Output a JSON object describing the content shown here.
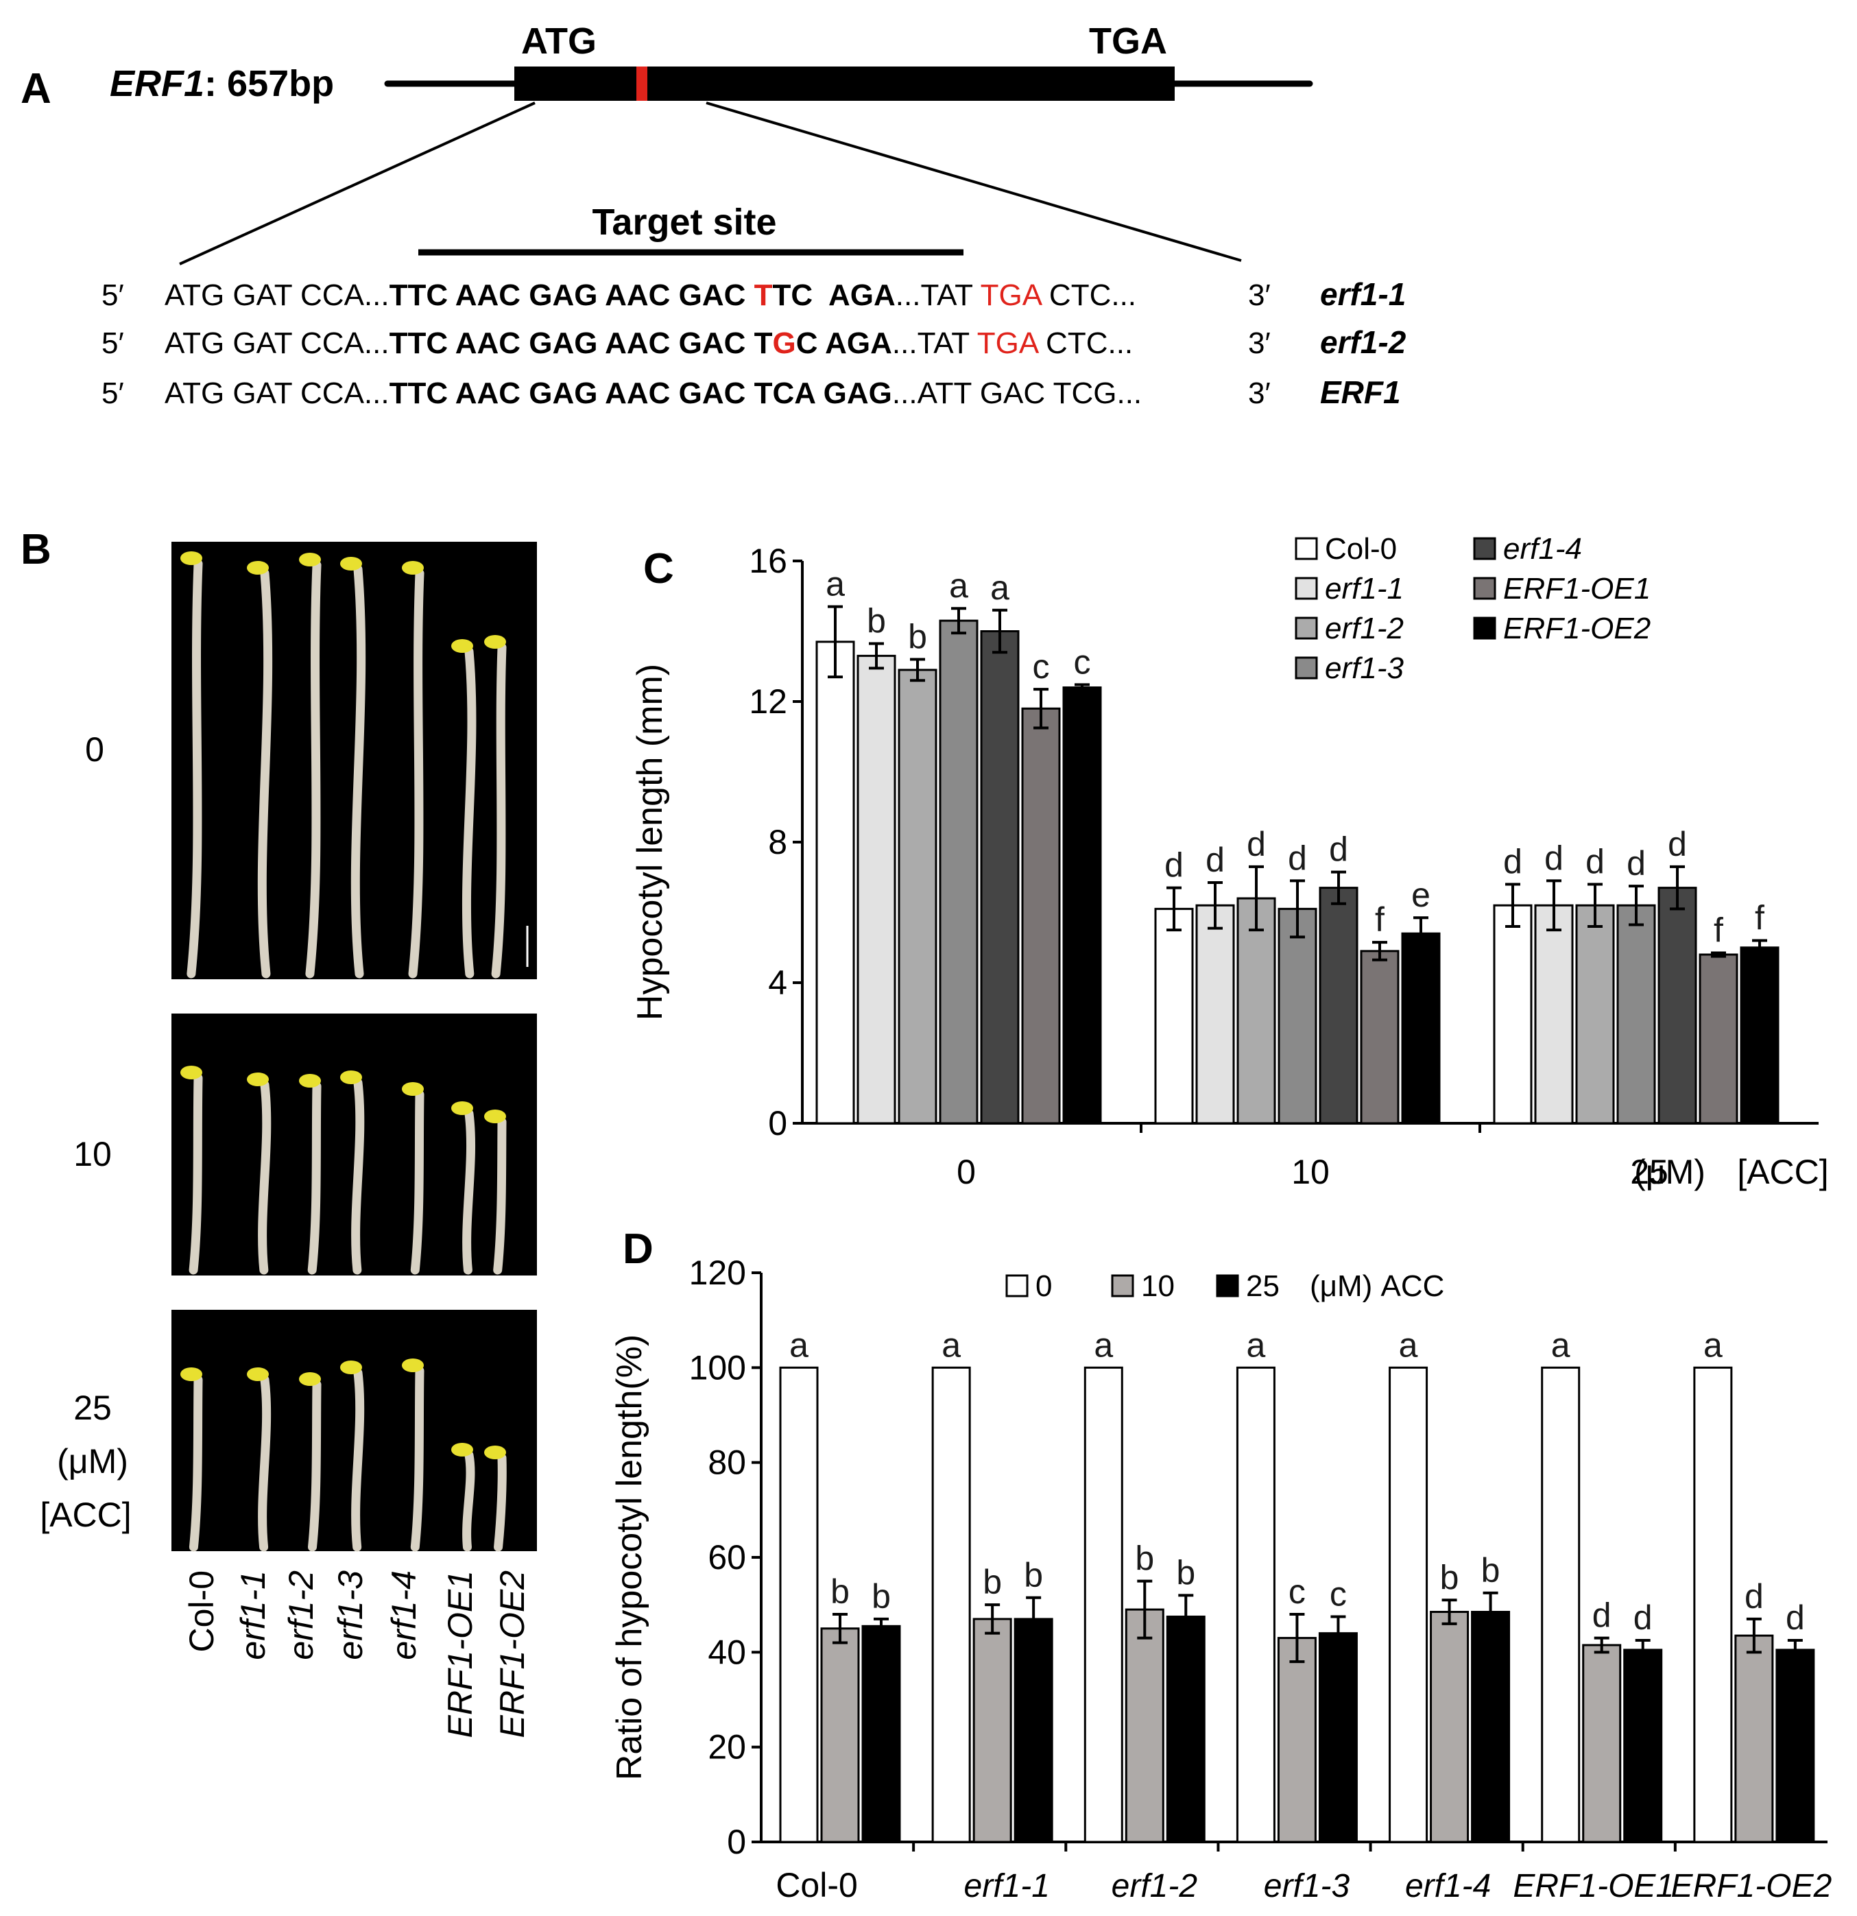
{
  "figure": {
    "panels": [
      "A",
      "B",
      "C",
      "D"
    ],
    "panel_a": {
      "gene_label": "ERF1",
      "gene_size": ": 657bp",
      "start_codon": "ATG",
      "stop_codon": "TGA",
      "target_label": "Target site",
      "sequences": [
        {
          "name": "erf1-1",
          "prime5": "5′",
          "prime3": "3′",
          "segments": [
            {
              "t": "ATG GAT CCA...",
              "bold": false,
              "red": false
            },
            {
              "t": "TTC AAC GAG AAC GAC ",
              "bold": true,
              "red": false
            },
            {
              "t": "T",
              "bold": true,
              "red": true
            },
            {
              "t": "TC  AGA",
              "bold": true,
              "red": false
            },
            {
              "t": "...TAT ",
              "bold": false,
              "red": false
            },
            {
              "t": "TGA",
              "bold": false,
              "red": true
            },
            {
              "t": " CTC...",
              "bold": false,
              "red": false
            }
          ]
        },
        {
          "name": "erf1-2",
          "prime5": "5′",
          "prime3": "3′",
          "segments": [
            {
              "t": "ATG GAT CCA...",
              "bold": false,
              "red": false
            },
            {
              "t": "TTC AAC GAG AAC GAC T",
              "bold": true,
              "red": false
            },
            {
              "t": "G",
              "bold": true,
              "red": true
            },
            {
              "t": "C AGA",
              "bold": true,
              "red": false
            },
            {
              "t": "...TAT ",
              "bold": false,
              "red": false
            },
            {
              "t": "TGA",
              "bold": false,
              "red": true
            },
            {
              "t": " CTC...",
              "bold": false,
              "red": false
            }
          ]
        },
        {
          "name": "ERF1",
          "prime5": "5′",
          "prime3": "3′",
          "segments": [
            {
              "t": "ATG GAT CCA...",
              "bold": false,
              "red": false
            },
            {
              "t": "TTC AAC GAG AAC GAC TCA GAG",
              "bold": true,
              "red": false
            },
            {
              "t": "...ATT GAC TCG...",
              "bold": false,
              "red": false
            }
          ]
        }
      ]
    },
    "panel_b": {
      "row_labels": [
        "0",
        "10",
        "25"
      ],
      "unit_labels": [
        "(μM)",
        "[ACC]"
      ],
      "genotypes": [
        "Col-0",
        "erf1-1",
        "erf1-2",
        "erf1-3",
        "erf1-4",
        "ERF1-OE1",
        "ERF1-OE2"
      ],
      "photo_bg": "#000000",
      "seedling_colors": {
        "stem": "#d8d2c4",
        "cotyledon": "#e8e030"
      }
    }
  },
  "chart_data": [
    {
      "panel": "C",
      "type": "bar",
      "title": "",
      "xlabel": "",
      "x_suffix": [
        "(μM)",
        "[ACC]"
      ],
      "ylabel": "Hypocotyl length (mm)",
      "ylim": [
        0,
        16
      ],
      "yticks": [
        0,
        4,
        8,
        12,
        16
      ],
      "categories": [
        "0",
        "10",
        "25"
      ],
      "series": [
        {
          "name": "Col-0",
          "color": "#ffffff",
          "values": [
            13.7,
            6.1,
            6.2
          ],
          "errors": [
            1.0,
            0.6,
            0.6
          ],
          "letters": [
            "a",
            "d",
            "d"
          ]
        },
        {
          "name": "erf1-1",
          "color": "#e2e2e2",
          "values": [
            13.3,
            6.2,
            6.2
          ],
          "errors": [
            0.35,
            0.65,
            0.7
          ],
          "letters": [
            "b",
            "d",
            "d"
          ]
        },
        {
          "name": "erf1-2",
          "color": "#ababab",
          "values": [
            12.9,
            6.4,
            6.2
          ],
          "errors": [
            0.3,
            0.9,
            0.6
          ],
          "letters": [
            "b",
            "d",
            "d"
          ]
        },
        {
          "name": "erf1-3",
          "color": "#8a8a8a",
          "values": [
            14.3,
            6.1,
            6.2
          ],
          "errors": [
            0.35,
            0.8,
            0.55
          ],
          "letters": [
            "a",
            "d",
            "d"
          ]
        },
        {
          "name": "erf1-4",
          "color": "#454545",
          "values": [
            14.0,
            6.7,
            6.7
          ],
          "errors": [
            0.6,
            0.45,
            0.6
          ],
          "letters": [
            "a",
            "d",
            "d"
          ]
        },
        {
          "name": "ERF1-OE1",
          "color": "#7a7474",
          "values": [
            11.8,
            4.9,
            4.8
          ],
          "errors": [
            0.55,
            0.25,
            0.05
          ],
          "letters": [
            "c",
            "f",
            "f"
          ]
        },
        {
          "name": "ERF1-OE2",
          "color": "#000000",
          "values": [
            12.4,
            5.4,
            5.0
          ],
          "errors": [
            0.08,
            0.45,
            0.2
          ],
          "letters": [
            "c",
            "e",
            "f"
          ]
        }
      ],
      "legend_position": "top-right",
      "grid": false
    },
    {
      "panel": "D",
      "type": "bar",
      "title": "",
      "xlabel": "",
      "ylabel": "Ratio of hypocotyl length(%)",
      "ylim": [
        0,
        120
      ],
      "yticks": [
        0,
        20,
        40,
        60,
        80,
        100,
        120
      ],
      "categories": [
        "Col-0",
        "erf1-1",
        "erf1-2",
        "erf1-3",
        "erf1-4",
        "ERF1-OE1",
        "ERF1-OE2"
      ],
      "categories_italic": [
        false,
        true,
        true,
        true,
        true,
        true,
        true
      ],
      "legend_suffix": "(μM) ACC",
      "series": [
        {
          "name": "0",
          "color": "#ffffff",
          "values": [
            100,
            100,
            100,
            100,
            100,
            100,
            100
          ],
          "errors": [
            0,
            0,
            0,
            0,
            0,
            0,
            0
          ],
          "letters": [
            "a",
            "a",
            "a",
            "a",
            "a",
            "a",
            "a"
          ]
        },
        {
          "name": "10",
          "color": "#aeaaa8",
          "values": [
            45,
            47,
            49,
            43,
            48.5,
            41.5,
            43.5
          ],
          "errors": [
            3,
            3,
            6,
            5,
            2.5,
            1.5,
            3.5
          ],
          "letters": [
            "b",
            "b",
            "b",
            "c",
            "b",
            "d",
            "d"
          ]
        },
        {
          "name": "25",
          "color": "#000000",
          "values": [
            45.5,
            47,
            47.5,
            44,
            48.5,
            40.5,
            40.5
          ],
          "errors": [
            1.5,
            4.5,
            4.5,
            3.5,
            4,
            2,
            2
          ],
          "letters": [
            "b",
            "b",
            "b",
            "c",
            "b",
            "d",
            "d"
          ]
        }
      ],
      "legend_position": "top",
      "grid": false
    }
  ]
}
